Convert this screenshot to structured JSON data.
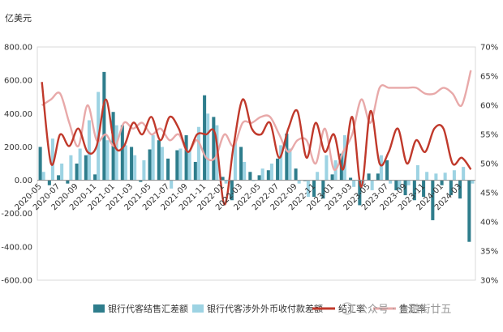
{
  "chart_data": {
    "type": "bar",
    "y_left_unit": "亿美元",
    "y_left_ticks": [
      "800.00",
      "600.00",
      "400.00",
      "200.00",
      "0.00",
      "-200.00",
      "-400.00",
      "-600.00"
    ],
    "y_right_ticks": [
      "70%",
      "65%",
      "60%",
      "55%",
      "50%",
      "45%",
      "40%",
      "35%",
      "30%"
    ],
    "ylim_left": [
      -600,
      800
    ],
    "ylim_right": [
      30,
      70
    ],
    "x_tick_labels": [
      "2020-05",
      "2020-07",
      "2020-09",
      "2020-11",
      "2021-01",
      "2021-03",
      "2021-05",
      "2021-07",
      "2021-09",
      "2021-11",
      "2022-01",
      "2022-03",
      "2022-05",
      "2022-07",
      "2022-09",
      "2022-11",
      "2023-01",
      "2023-03",
      "2023-05",
      "2023-07",
      "2023-09",
      "2023-11",
      "2024-01",
      "2024-03"
    ],
    "categories": [
      "2020-05",
      "2020-06",
      "2020-07",
      "2020-08",
      "2020-09",
      "2020-10",
      "2020-11",
      "2020-12",
      "2021-01",
      "2021-02",
      "2021-03",
      "2021-04",
      "2021-05",
      "2021-06",
      "2021-07",
      "2021-08",
      "2021-09",
      "2021-10",
      "2021-11",
      "2021-12",
      "2022-01",
      "2022-02",
      "2022-03",
      "2022-04",
      "2022-05",
      "2022-06",
      "2022-07",
      "2022-08",
      "2022-09",
      "2022-10",
      "2022-11",
      "2022-12",
      "2023-01",
      "2023-02",
      "2023-03",
      "2023-04",
      "2023-05",
      "2023-06",
      "2023-07",
      "2023-08",
      "2023-09",
      "2023-10",
      "2023-11",
      "2023-12",
      "2024-01",
      "2024-02",
      "2024-03",
      "2024-04"
    ],
    "series": [
      {
        "name": "银行代客结售汇差额",
        "axis": "left",
        "kind": "bar",
        "color": "#2e7d8c",
        "values": [
          200,
          -30,
          30,
          -20,
          100,
          150,
          35,
          650,
          410,
          330,
          200,
          -10,
          185,
          240,
          130,
          180,
          270,
          110,
          510,
          380,
          20,
          -120,
          200,
          50,
          30,
          60,
          130,
          280,
          70,
          -5,
          -100,
          -110,
          35,
          160,
          15,
          -150,
          40,
          40,
          120,
          -60,
          -90,
          -120,
          -100,
          -240,
          -30,
          -90,
          -110,
          -370
        ]
      },
      {
        "name": "银行代客涉外外币收付款差额",
        "axis": "left",
        "kind": "bar",
        "color": "#9dd3e3",
        "values": [
          50,
          250,
          100,
          150,
          190,
          360,
          530,
          240,
          330,
          210,
          150,
          120,
          270,
          200,
          -50,
          190,
          180,
          320,
          400,
          330,
          -20,
          240,
          110,
          -5,
          70,
          100,
          210,
          190,
          -20,
          -100,
          50,
          150,
          120,
          270,
          -40,
          -30,
          -60,
          150,
          -20,
          -60,
          -30,
          90,
          50,
          40,
          45,
          60,
          80,
          -20
        ]
      },
      {
        "name": "结汇率",
        "axis": "right",
        "kind": "line",
        "color": "#c0392b",
        "values": [
          64,
          50,
          55,
          53,
          56,
          52,
          53,
          61,
          53,
          53,
          57,
          55,
          58,
          54,
          58,
          56,
          52,
          55,
          55,
          55,
          43,
          53,
          61,
          56,
          55,
          57,
          51,
          56,
          59,
          51,
          57,
          52,
          55,
          49,
          58,
          46,
          59,
          50,
          52,
          56,
          50,
          54,
          52,
          56,
          56,
          50,
          51,
          49
        ]
      },
      {
        "name": "售汇率",
        "axis": "right",
        "kind": "line",
        "color": "#e8a9a9",
        "values": [
          60,
          61,
          62,
          57,
          53,
          60,
          54,
          55,
          53,
          57,
          56,
          57,
          55,
          56,
          54,
          55,
          52,
          54,
          51,
          51,
          55,
          53,
          57,
          57,
          58,
          58,
          55,
          52,
          54,
          54,
          50,
          56,
          49,
          52,
          55,
          61,
          57,
          63,
          63,
          63,
          63,
          63,
          62,
          62,
          63,
          62,
          60,
          66
        ]
      }
    ],
    "watermark": "公众号 · 金融街廿五"
  }
}
